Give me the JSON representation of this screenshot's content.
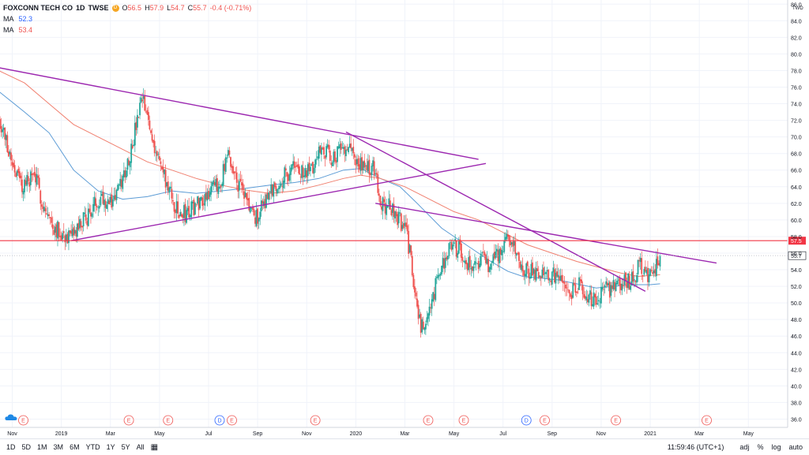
{
  "legend": {
    "symbol": "FOXCONN TECH CO",
    "interval": "1D",
    "exchange": "TWSE",
    "badge": "D",
    "ohlc": [
      {
        "label": "O",
        "value": "56.5"
      },
      {
        "label": "H",
        "value": "57.9"
      },
      {
        "label": "L",
        "value": "54.7"
      },
      {
        "label": "C",
        "value": "55.7"
      }
    ],
    "change": "-0.4 (-0.71%)",
    "ma": [
      {
        "label": "MA",
        "value": "52.3",
        "color": "#2962ff"
      },
      {
        "label": "MA",
        "value": "53.4",
        "color": "#ef5350"
      }
    ]
  },
  "bottom_bar": {
    "ranges": [
      "1D",
      "5D",
      "1M",
      "3M",
      "6M",
      "YTD",
      "1Y",
      "5Y",
      "All"
    ],
    "calendar_icon": "calendar-icon",
    "clock": "11:59:46 (UTC+1)",
    "options": [
      "adj",
      "%",
      "log",
      "auto"
    ]
  },
  "chart_data": {
    "type": "candlestick",
    "currency": "TWD",
    "y_ticks": [
      "36.0",
      "38.0",
      "40.0",
      "42.0",
      "44.0",
      "46.0",
      "48.0",
      "50.0",
      "52.0",
      "54.0",
      "56.0",
      "58.0",
      "60.0",
      "62.0",
      "64.0",
      "66.0",
      "68.0",
      "70.0",
      "72.0",
      "74.0",
      "76.0",
      "78.0",
      "80.0",
      "82.0",
      "84.0",
      "86.0"
    ],
    "ylim": [
      35,
      86.5
    ],
    "x_ticks": [
      {
        "label": "Nov",
        "m": 0
      },
      {
        "label": "2019",
        "m": 2
      },
      {
        "label": "Mar",
        "m": 4
      },
      {
        "label": "May",
        "m": 6
      },
      {
        "label": "Jul",
        "m": 8
      },
      {
        "label": "Sep",
        "m": 10
      },
      {
        "label": "Nov",
        "m": 12
      },
      {
        "label": "2020",
        "m": 14
      },
      {
        "label": "Mar",
        "m": 16
      },
      {
        "label": "May",
        "m": 18
      },
      {
        "label": "Jul",
        "m": 20
      },
      {
        "label": "Sep",
        "m": 22
      },
      {
        "label": "Nov",
        "m": 24
      },
      {
        "label": "2021",
        "m": 26
      },
      {
        "label": "Mar",
        "m": 28
      },
      {
        "label": "May",
        "m": 30
      }
    ],
    "xlim_months": [
      -0.5,
      31.6
    ],
    "horizontal_level": {
      "value": 57.5,
      "label": "57.5",
      "color": "#f23645"
    },
    "last_price": {
      "value": 55.7,
      "label": "55.7"
    },
    "trendlines": [
      {
        "from": [
          -1.0,
          78.6
        ],
        "to": [
          19.0,
          67.3
        ]
      },
      {
        "from": [
          2.4,
          57.5
        ],
        "to": [
          19.3,
          66.8
        ]
      },
      {
        "from": [
          13.6,
          70.6
        ],
        "to": [
          25.8,
          51.4
        ]
      },
      {
        "from": [
          14.8,
          62.0
        ],
        "to": [
          28.7,
          54.8
        ]
      }
    ],
    "candle_path": [
      [
        -0.55,
        72.5
      ],
      [
        0.0,
        67.0
      ],
      [
        0.4,
        64.0
      ],
      [
        0.9,
        65.5
      ],
      [
        1.3,
        61.5
      ],
      [
        1.6,
        59.5
      ],
      [
        2.0,
        58.5
      ],
      [
        2.4,
        57.6
      ],
      [
        2.8,
        59.5
      ],
      [
        3.2,
        61.0
      ],
      [
        3.6,
        63.0
      ],
      [
        4.0,
        62.0
      ],
      [
        4.4,
        64.0
      ],
      [
        4.8,
        68.0
      ],
      [
        5.3,
        74.5
      ],
      [
        5.7,
        70.0
      ],
      [
        6.1,
        66.0
      ],
      [
        6.5,
        62.5
      ],
      [
        6.8,
        60.5
      ],
      [
        7.2,
        61.0
      ],
      [
        7.7,
        62.5
      ],
      [
        8.0,
        63.5
      ],
      [
        8.4,
        64.0
      ],
      [
        8.8,
        67.5
      ],
      [
        9.2,
        64.5
      ],
      [
        9.6,
        62.0
      ],
      [
        9.9,
        60.0
      ],
      [
        10.3,
        62.5
      ],
      [
        10.7,
        64.0
      ],
      [
        11.0,
        65.0
      ],
      [
        11.5,
        66.5
      ],
      [
        11.8,
        65.5
      ],
      [
        12.2,
        66.0
      ],
      [
        12.6,
        69.0
      ],
      [
        13.0,
        67.5
      ],
      [
        13.3,
        68.0
      ],
      [
        13.7,
        69.5
      ],
      [
        14.0,
        67.0
      ],
      [
        14.4,
        66.0
      ],
      [
        14.8,
        66.5
      ],
      [
        15.0,
        62.0
      ],
      [
        15.4,
        61.5
      ],
      [
        15.8,
        60.0
      ],
      [
        16.1,
        58.0
      ],
      [
        16.3,
        54.0
      ],
      [
        16.5,
        49.0
      ],
      [
        16.75,
        46.5
      ],
      [
        17.0,
        49.0
      ],
      [
        17.3,
        52.5
      ],
      [
        17.6,
        55.0
      ],
      [
        17.9,
        57.0
      ],
      [
        18.2,
        56.5
      ],
      [
        18.5,
        55.0
      ],
      [
        18.8,
        54.5
      ],
      [
        19.1,
        55.5
      ],
      [
        19.4,
        54.5
      ],
      [
        19.8,
        56.0
      ],
      [
        20.1,
        57.5
      ],
      [
        20.4,
        57.0
      ],
      [
        20.7,
        55.0
      ],
      [
        21.0,
        53.5
      ],
      [
        21.4,
        54.0
      ],
      [
        21.8,
        53.0
      ],
      [
        22.1,
        53.5
      ],
      [
        22.5,
        52.0
      ],
      [
        22.8,
        51.5
      ],
      [
        23.1,
        52.0
      ],
      [
        23.5,
        50.5
      ],
      [
        23.9,
        51.0
      ],
      [
        24.2,
        51.5
      ],
      [
        24.6,
        52.0
      ],
      [
        25.0,
        52.5
      ],
      [
        25.4,
        53.0
      ],
      [
        25.55,
        55.5
      ],
      [
        25.7,
        54.0
      ],
      [
        25.9,
        52.5
      ],
      [
        26.1,
        53.5
      ],
      [
        26.25,
        55.0
      ],
      [
        26.4,
        55.7
      ]
    ],
    "ma_blue_path": [
      [
        -0.55,
        75.5
      ],
      [
        0.5,
        73.0
      ],
      [
        1.5,
        70.5
      ],
      [
        2.5,
        66.0
      ],
      [
        3.5,
        63.5
      ],
      [
        4.5,
        62.5
      ],
      [
        5.5,
        62.8
      ],
      [
        6.5,
        63.5
      ],
      [
        7.5,
        63.2
      ],
      [
        8.5,
        63.5
      ],
      [
        9.5,
        63.8
      ],
      [
        10.5,
        64.2
      ],
      [
        11.5,
        64.5
      ],
      [
        12.5,
        65.0
      ],
      [
        13.5,
        66.0
      ],
      [
        14.2,
        66.2
      ],
      [
        15.0,
        65.0
      ],
      [
        15.8,
        64.0
      ],
      [
        16.5,
        62.0
      ],
      [
        17.5,
        59.0
      ],
      [
        18.5,
        57.0
      ],
      [
        19.5,
        55.0
      ],
      [
        20.2,
        53.8
      ],
      [
        20.8,
        53.2
      ],
      [
        21.5,
        53.0
      ],
      [
        22.2,
        52.8
      ],
      [
        23.0,
        52.3
      ],
      [
        23.8,
        51.8
      ],
      [
        24.5,
        52.0
      ],
      [
        25.2,
        52.2
      ],
      [
        26.0,
        52.2
      ],
      [
        26.4,
        52.3
      ]
    ],
    "ma_red_path": [
      [
        -0.55,
        78.0
      ],
      [
        0.5,
        76.5
      ],
      [
        1.5,
        74.0
      ],
      [
        2.5,
        71.5
      ],
      [
        3.5,
        70.0
      ],
      [
        4.5,
        68.5
      ],
      [
        5.5,
        67.0
      ],
      [
        6.5,
        66.0
      ],
      [
        7.5,
        65.0
      ],
      [
        8.5,
        64.2
      ],
      [
        9.5,
        63.6
      ],
      [
        10.5,
        63.2
      ],
      [
        11.5,
        63.5
      ],
      [
        12.5,
        64.2
      ],
      [
        13.5,
        65.0
      ],
      [
        14.2,
        65.4
      ],
      [
        15.0,
        65.0
      ],
      [
        16.0,
        64.0
      ],
      [
        17.0,
        62.5
      ],
      [
        18.0,
        61.0
      ],
      [
        19.0,
        60.0
      ],
      [
        20.0,
        58.5
      ],
      [
        21.0,
        57.0
      ],
      [
        22.0,
        56.0
      ],
      [
        23.0,
        55.0
      ],
      [
        24.0,
        54.2
      ],
      [
        24.8,
        53.6
      ],
      [
        25.5,
        53.2
      ],
      [
        26.0,
        53.3
      ],
      [
        26.4,
        53.4
      ]
    ],
    "earnings_markers": [
      {
        "label": "E",
        "m": 0.45
      },
      {
        "label": "E",
        "m": 4.75
      },
      {
        "label": "E",
        "m": 6.35
      },
      {
        "label": "D",
        "m": 8.45
      },
      {
        "label": "E",
        "m": 8.95
      },
      {
        "label": "E",
        "m": 12.35
      },
      {
        "label": "E",
        "m": 16.95
      },
      {
        "label": "E",
        "m": 18.4
      },
      {
        "label": "D",
        "m": 20.95
      },
      {
        "label": "E",
        "m": 21.7
      },
      {
        "label": "E",
        "m": 24.6
      },
      {
        "label": "E",
        "m": 28.3
      }
    ]
  }
}
